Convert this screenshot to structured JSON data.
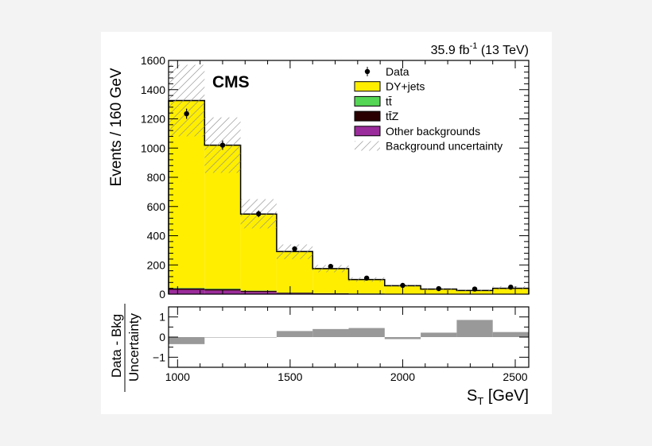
{
  "chart_data": [
    {
      "type": "bar",
      "stacked": true,
      "title": "",
      "lumi_label": "35.9 fb-1 (13 TeV)",
      "lumi_parts": {
        "value": "35.9 fb",
        "exp": "-1",
        "energy": "(13 TeV)"
      },
      "experiment_label": "CMS",
      "ylabel": "Events / 160 GeV",
      "xlim": [
        960,
        2560
      ],
      "ylim": [
        0,
        1600
      ],
      "yticks": [
        0,
        200,
        400,
        600,
        800,
        1000,
        1200,
        1400,
        1600
      ],
      "legend_position": "top-right",
      "bin_edges": [
        960,
        1120,
        1280,
        1440,
        1600,
        1760,
        1920,
        2080,
        2240,
        2400,
        2560
      ],
      "series": [
        {
          "name": "Other backgrounds",
          "color": "#9b2c9b",
          "values": [
            30,
            25,
            15,
            5,
            3,
            2,
            1,
            1,
            1,
            1
          ]
        },
        {
          "name": "tt̄Z",
          "color": "#2a0000",
          "values": [
            10,
            10,
            8,
            5,
            3,
            2,
            1,
            1,
            1,
            1
          ]
        },
        {
          "name": "tt̄",
          "color": "#55d655",
          "values": [
            3,
            3,
            2,
            1,
            1,
            1,
            0,
            0,
            0,
            0
          ]
        },
        {
          "name": "DY+jets",
          "color": "#ffee00",
          "values": [
            1282,
            982,
            523,
            281,
            168,
            95,
            56,
            33,
            23,
            38
          ]
        }
      ],
      "total_background": [
        1325,
        1020,
        548,
        292,
        175,
        100,
        58,
        35,
        25,
        40
      ],
      "uncertainty": {
        "name": "Background uncertainty",
        "low": [
          1080,
          830,
          450,
          240,
          150,
          85,
          50,
          30,
          20,
          30
        ],
        "high": [
          1570,
          1210,
          650,
          340,
          200,
          115,
          65,
          40,
          30,
          55
        ]
      },
      "data": {
        "name": "Data",
        "values": [
          1235,
          1020,
          550,
          310,
          190,
          110,
          60,
          38,
          35,
          48
        ],
        "errors": [
          35,
          32,
          23,
          18,
          14,
          10,
          8,
          6,
          6,
          7
        ]
      }
    },
    {
      "type": "bar",
      "ylabel_top": "Data - Bkg",
      "ylabel_bottom": "Uncertainty",
      "xlabel": "S",
      "xlabel_sub": "T",
      "xlabel_unit": "[GeV]",
      "xlim": [
        960,
        2560
      ],
      "ylim": [
        -1.5,
        1.5
      ],
      "yticks": [
        -1,
        0,
        1
      ],
      "ytick_labels": [
        "−1",
        "0",
        "1"
      ],
      "xticks": [
        1000,
        1500,
        2000,
        2500
      ],
      "bin_edges": [
        960,
        1120,
        1280,
        1440,
        1600,
        1760,
        1920,
        2080,
        2240,
        2400,
        2560
      ],
      "values": [
        -0.35,
        0,
        0,
        0.3,
        0.4,
        0.45,
        -0.1,
        0.22,
        0.85,
        0.25
      ],
      "color": "#999999"
    }
  ]
}
